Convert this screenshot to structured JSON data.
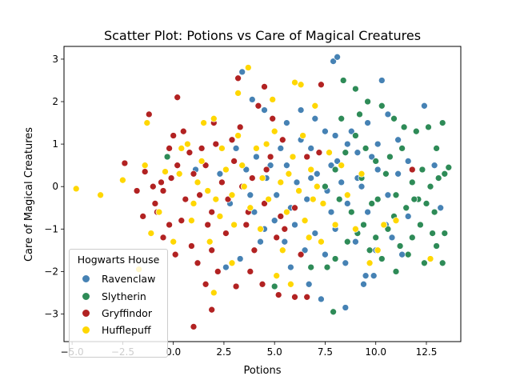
{
  "chart_data": {
    "type": "scatter",
    "title": "Scatter Plot: Potions vs Care of Magical Creatures",
    "xlabel": "Potions",
    "ylabel": "Care of Magical Creatures",
    "xlim": [
      -5.4,
      14.2
    ],
    "ylim": [
      -3.65,
      3.3
    ],
    "xticks": [
      "−5.0",
      "−2.5",
      "0.0",
      "2.5",
      "5.0",
      "7.5",
      "10.0",
      "12.5"
    ],
    "yticks": [
      "−3",
      "−2",
      "−1",
      "0",
      "1",
      "2",
      "3"
    ],
    "grid": false,
    "legend_title": "Hogwarts House",
    "legend_position": "lower-left",
    "series": [
      {
        "name": "Ravenclaw",
        "color": "#4682b4",
        "points": [
          [
            7.9,
            2.95
          ],
          [
            8.1,
            3.05
          ],
          [
            10.3,
            2.5
          ],
          [
            3.4,
            2.7
          ],
          [
            3.9,
            2.05
          ],
          [
            4.5,
            1.8
          ],
          [
            5.6,
            1.5
          ],
          [
            6.3,
            1.8
          ],
          [
            7.0,
            1.6
          ],
          [
            7.5,
            1.3
          ],
          [
            8.0,
            1.2
          ],
          [
            8.6,
            1.0
          ],
          [
            9.1,
            0.8
          ],
          [
            9.6,
            1.5
          ],
          [
            10.1,
            1.0
          ],
          [
            10.6,
            1.7
          ],
          [
            11.1,
            1.1
          ],
          [
            11.6,
            0.6
          ],
          [
            12.4,
            1.9
          ],
          [
            12.9,
            0.5
          ],
          [
            13.2,
            -0.5
          ],
          [
            3.1,
            0.9
          ],
          [
            3.6,
            0.4
          ],
          [
            4.1,
            0.7
          ],
          [
            4.6,
            0.2
          ],
          [
            5.1,
            -0.2
          ],
          [
            5.6,
            0.5
          ],
          [
            6.1,
            0.1
          ],
          [
            6.6,
            -0.3
          ],
          [
            7.1,
            0.3
          ],
          [
            7.6,
            -0.1
          ],
          [
            8.1,
            0.6
          ],
          [
            8.6,
            -0.4
          ],
          [
            9.1,
            0.2
          ],
          [
            9.6,
            -0.6
          ],
          [
            10.1,
            0.4
          ],
          [
            10.6,
            -0.2
          ],
          [
            11.1,
            0.3
          ],
          [
            11.6,
            -0.7
          ],
          [
            4.0,
            -0.6
          ],
          [
            4.5,
            -1.0
          ],
          [
            5.0,
            -0.8
          ],
          [
            5.5,
            -1.3
          ],
          [
            6.0,
            -0.9
          ],
          [
            6.5,
            -1.5
          ],
          [
            7.0,
            -1.1
          ],
          [
            7.5,
            -1.6
          ],
          [
            8.0,
            -1.0
          ],
          [
            8.5,
            -1.8
          ],
          [
            9.0,
            -1.3
          ],
          [
            9.5,
            -2.1
          ],
          [
            10.0,
            -1.5
          ],
          [
            10.5,
            -0.9
          ],
          [
            3.3,
            -1.7
          ],
          [
            2.6,
            -1.9
          ],
          [
            6.7,
            -2.3
          ],
          [
            7.3,
            -2.65
          ],
          [
            8.5,
            -2.85
          ],
          [
            9.4,
            -2.3
          ],
          [
            9.9,
            -2.1
          ],
          [
            5.3,
            0.9
          ],
          [
            6.8,
            0.9
          ],
          [
            7.8,
            0.5
          ],
          [
            8.8,
            1.3
          ],
          [
            9.3,
            0.0
          ],
          [
            2.3,
            0.3
          ],
          [
            2.8,
            -0.4
          ],
          [
            3.8,
            -0.2
          ],
          [
            4.8,
            0.5
          ],
          [
            5.8,
            -0.5
          ],
          [
            6.8,
            0.2
          ],
          [
            7.8,
            -0.6
          ],
          [
            8.3,
            0.1
          ],
          [
            9.8,
            0.7
          ],
          [
            10.8,
            -1.2
          ],
          [
            11.3,
            -1.6
          ],
          [
            4.3,
            -1.3
          ],
          [
            5.8,
            -1.9
          ],
          [
            6.3,
            1.1
          ],
          [
            1.1,
            0.4
          ]
        ]
      },
      {
        "name": "Slytherin",
        "color": "#2e8b57",
        "points": [
          [
            8.4,
            2.5
          ],
          [
            9.0,
            2.3
          ],
          [
            9.6,
            2.0
          ],
          [
            10.3,
            1.9
          ],
          [
            10.9,
            1.6
          ],
          [
            11.4,
            1.4
          ],
          [
            12.0,
            1.3
          ],
          [
            12.6,
            1.4
          ],
          [
            13.3,
            1.5
          ],
          [
            13.0,
            0.9
          ],
          [
            13.6,
            0.45
          ],
          [
            13.4,
            0.3
          ],
          [
            12.7,
            0.0
          ],
          [
            12.1,
            -0.3
          ],
          [
            11.5,
            -0.5
          ],
          [
            11.0,
            -0.2
          ],
          [
            10.5,
            0.3
          ],
          [
            10.0,
            0.6
          ],
          [
            9.5,
            0.9
          ],
          [
            9.0,
            1.2
          ],
          [
            8.5,
            0.8
          ],
          [
            8.0,
            0.4
          ],
          [
            7.5,
            0.0
          ],
          [
            8.2,
            -0.3
          ],
          [
            8.8,
            -0.6
          ],
          [
            9.4,
            -0.9
          ],
          [
            10.0,
            -1.2
          ],
          [
            10.6,
            -1.0
          ],
          [
            11.2,
            -1.4
          ],
          [
            11.8,
            -1.2
          ],
          [
            12.4,
            -1.8
          ],
          [
            13.0,
            -1.4
          ],
          [
            13.3,
            -1.8
          ],
          [
            13.4,
            -1.1
          ],
          [
            12.9,
            -0.6
          ],
          [
            12.2,
            -0.9
          ],
          [
            11.6,
            -1.6
          ],
          [
            11.0,
            -2.0
          ],
          [
            10.3,
            -1.7
          ],
          [
            9.7,
            -1.5
          ],
          [
            9.1,
            -1.1
          ],
          [
            8.6,
            -1.3
          ],
          [
            8.0,
            -1.7
          ],
          [
            7.6,
            -1.9
          ],
          [
            7.9,
            -2.95
          ],
          [
            5.0,
            -2.35
          ],
          [
            6.8,
            -1.9
          ],
          [
            -0.3,
            0.7
          ],
          [
            10.1,
            -0.3
          ],
          [
            11.8,
            0.1
          ],
          [
            12.3,
            0.4
          ],
          [
            9.3,
            0.2
          ],
          [
            10.7,
            0.7
          ],
          [
            11.3,
            0.9
          ],
          [
            12.5,
            -0.4
          ],
          [
            10.9,
            -0.7
          ],
          [
            9.8,
            -0.4
          ],
          [
            8.3,
            1.6
          ],
          [
            9.2,
            1.7
          ],
          [
            11.9,
            -0.3
          ],
          [
            13.1,
            0.2
          ],
          [
            12.8,
            -1.1
          ]
        ]
      },
      {
        "name": "Gryffindor",
        "color": "#b22222",
        "points": [
          [
            -2.4,
            0.55
          ],
          [
            -1.8,
            -0.1
          ],
          [
            -1.4,
            0.35
          ],
          [
            -1.2,
            1.7
          ],
          [
            -1.0,
            0.0
          ],
          [
            -0.8,
            -0.6
          ],
          [
            -0.5,
            -0.1
          ],
          [
            -0.2,
            0.9
          ],
          [
            0.0,
            1.2
          ],
          [
            0.2,
            2.1
          ],
          [
            0.5,
            1.3
          ],
          [
            0.8,
            0.8
          ],
          [
            1.0,
            0.3
          ],
          [
            1.3,
            -0.2
          ],
          [
            1.6,
            0.5
          ],
          [
            1.9,
            -0.6
          ],
          [
            2.1,
            1.0
          ],
          [
            2.4,
            0.1
          ],
          [
            2.7,
            -0.3
          ],
          [
            3.0,
            0.6
          ],
          [
            3.3,
            1.4
          ],
          [
            3.6,
            -0.9
          ],
          [
            3.9,
            0.2
          ],
          [
            4.2,
            1.9
          ],
          [
            4.5,
            -0.4
          ],
          [
            4.8,
            0.7
          ],
          [
            5.1,
            -1.2
          ],
          [
            5.4,
            1.1
          ],
          [
            5.7,
            0.3
          ],
          [
            6.0,
            -0.5
          ],
          [
            6.3,
            -1.6
          ],
          [
            0.4,
            -0.8
          ],
          [
            0.9,
            -1.4
          ],
          [
            1.2,
            -1.8
          ],
          [
            1.6,
            -2.3
          ],
          [
            1.9,
            -1.5
          ],
          [
            2.2,
            -2.0
          ],
          [
            1.0,
            -3.3
          ],
          [
            1.9,
            -2.9
          ],
          [
            3.1,
            -2.35
          ],
          [
            3.8,
            -2.0
          ],
          [
            4.4,
            -2.3
          ],
          [
            5.2,
            -2.55
          ],
          [
            6.0,
            -2.6
          ],
          [
            6.6,
            -2.6
          ],
          [
            7.3,
            2.4
          ],
          [
            4.5,
            2.35
          ],
          [
            3.2,
            2.55
          ],
          [
            -0.2,
            -0.9
          ],
          [
            -0.5,
            -1.2
          ],
          [
            0.1,
            -1.6
          ],
          [
            -0.9,
            -0.4
          ],
          [
            -1.5,
            -0.7
          ],
          [
            -0.1,
            0.2
          ],
          [
            0.6,
            -0.3
          ],
          [
            1.4,
            0.9
          ],
          [
            2.0,
            1.5
          ],
          [
            2.6,
            -1.1
          ],
          [
            3.4,
            0.0
          ],
          [
            4.0,
            -1.5
          ],
          [
            4.6,
            0.4
          ],
          [
            5.3,
            -0.7
          ],
          [
            0.2,
            0.5
          ],
          [
            1.7,
            -0.9
          ],
          [
            2.9,
            1.1
          ],
          [
            3.7,
            -0.6
          ],
          [
            4.9,
            1.6
          ],
          [
            5.5,
            -1.0
          ],
          [
            6.6,
            0.7
          ],
          [
            7.2,
            0.8
          ],
          [
            11.8,
            0.4
          ],
          [
            -0.6,
            0.1
          ]
        ]
      },
      {
        "name": "Hufflepuff",
        "color": "#ffd700",
        "points": [
          [
            -4.8,
            -0.05
          ],
          [
            -3.6,
            -0.2
          ],
          [
            -2.5,
            0.15
          ],
          [
            -1.7,
            -1.95
          ],
          [
            -1.4,
            0.5
          ],
          [
            -1.3,
            1.5
          ],
          [
            -1.1,
            -1.1
          ],
          [
            -0.7,
            -0.6
          ],
          [
            -0.4,
            0.35
          ],
          [
            0.0,
            -1.3
          ],
          [
            0.3,
            0.3
          ],
          [
            0.7,
            1.0
          ],
          [
            1.0,
            -0.4
          ],
          [
            1.4,
            0.6
          ],
          [
            1.7,
            -0.1
          ],
          [
            2.0,
            1.6
          ],
          [
            2.3,
            -0.7
          ],
          [
            2.6,
            0.4
          ],
          [
            2.9,
            -0.2
          ],
          [
            3.2,
            1.2
          ],
          [
            3.5,
            0.0
          ],
          [
            3.8,
            -0.5
          ],
          [
            4.1,
            0.9
          ],
          [
            4.4,
            0.2
          ],
          [
            4.7,
            -0.3
          ],
          [
            5.0,
            1.3
          ],
          [
            5.3,
            0.1
          ],
          [
            5.6,
            -0.6
          ],
          [
            5.9,
            0.7
          ],
          [
            6.2,
            -0.1
          ],
          [
            6.5,
            -0.8
          ],
          [
            6.8,
            0.4
          ],
          [
            7.1,
            0.0
          ],
          [
            7.4,
            -0.4
          ],
          [
            7.7,
            0.8
          ],
          [
            8.0,
            -0.9
          ],
          [
            8.3,
            0.5
          ],
          [
            9.0,
            -1.0
          ],
          [
            9.7,
            -1.8
          ],
          [
            10.4,
            -0.9
          ],
          [
            11.0,
            -0.8
          ],
          [
            12.7,
            -1.7
          ],
          [
            3.7,
            2.8
          ],
          [
            3.2,
            2.2
          ],
          [
            4.9,
            2.05
          ],
          [
            6.0,
            2.45
          ],
          [
            6.3,
            2.4
          ],
          [
            7.0,
            1.9
          ],
          [
            5.1,
            -2.1
          ],
          [
            5.8,
            -2.3
          ],
          [
            2.9,
            -1.8
          ],
          [
            2.0,
            -2.5
          ],
          [
            1.5,
            1.5
          ],
          [
            2.4,
            0.9
          ],
          [
            4.3,
            -1.0
          ],
          [
            5.4,
            -1.5
          ],
          [
            6.7,
            -1.2
          ],
          [
            3.0,
            -0.9
          ],
          [
            1.8,
            -1.3
          ],
          [
            0.9,
            -0.8
          ],
          [
            0.4,
            0.9
          ],
          [
            1.2,
            0.1
          ],
          [
            2.1,
            -0.3
          ],
          [
            3.4,
            0.5
          ],
          [
            4.6,
            1.0
          ],
          [
            5.7,
            0.3
          ],
          [
            6.4,
            1.2
          ],
          [
            7.3,
            -1.3
          ],
          [
            8.6,
            -0.2
          ],
          [
            9.3,
            0.3
          ],
          [
            10.1,
            -1.5
          ],
          [
            6.9,
            -0.3
          ]
        ]
      }
    ]
  }
}
